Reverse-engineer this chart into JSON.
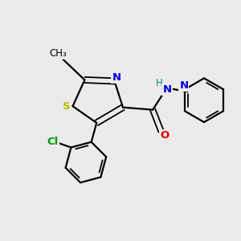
{
  "background_color": "#ebebeb",
  "bond_color": "#000000",
  "S_color": "#b8b800",
  "N_color": "#0000dd",
  "N_amide_color": "#008888",
  "O_color": "#dd0000",
  "Cl_color": "#009900",
  "text_color": "#000000",
  "figsize": [
    3.0,
    3.0
  ],
  "dpi": 100,
  "xlim": [
    0,
    10
  ],
  "ylim": [
    0,
    10
  ]
}
